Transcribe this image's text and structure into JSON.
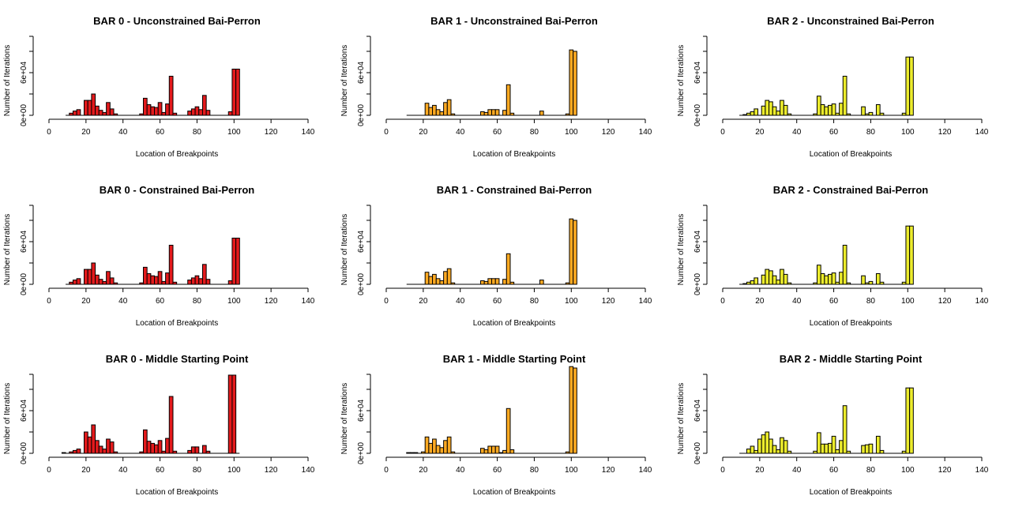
{
  "layout_grid": "3x3",
  "chart_data": [
    {
      "type": "bar",
      "title": "BAR 0 - Unconstrained Bai-Perron",
      "xlabel": "Location of Breakpoints",
      "ylabel": "Number of Iterations",
      "xlim": [
        0,
        140
      ],
      "x_ticks": [
        0,
        20,
        40,
        60,
        80,
        100,
        120,
        140
      ],
      "y_ticks": [
        {
          "value": 0,
          "label": "0e+00"
        },
        {
          "value": 60000,
          "label": "6e+04"
        }
      ],
      "ylim": [
        0,
        120000
      ],
      "bin_width": 2,
      "color": "#e41a1c",
      "x": [
        10,
        12,
        14,
        16,
        18,
        20,
        22,
        24,
        26,
        28,
        30,
        32,
        34,
        36,
        38,
        40,
        42,
        44,
        46,
        48,
        50,
        52,
        54,
        56,
        58,
        60,
        62,
        64,
        66,
        68,
        70,
        72,
        74,
        76,
        78,
        80,
        82,
        84,
        86,
        88,
        90,
        92,
        94,
        96,
        98,
        100,
        102
      ],
      "values": [
        0,
        3000,
        6000,
        8000,
        0,
        21000,
        21000,
        30000,
        13000,
        7000,
        4000,
        18000,
        9000,
        2000,
        0,
        0,
        0,
        0,
        0,
        0,
        2000,
        24000,
        15000,
        12000,
        11000,
        18000,
        4000,
        16000,
        55000,
        3000,
        0,
        0,
        0,
        6000,
        9000,
        12000,
        8000,
        28000,
        7000,
        0,
        0,
        0,
        0,
        0,
        5000,
        65000,
        65000
      ]
    },
    {
      "type": "bar",
      "title": "BAR 1 - Unconstrained Bai-Perron",
      "xlabel": "Location of Breakpoints",
      "ylabel": "Number of Iterations",
      "xlim": [
        0,
        140
      ],
      "x_ticks": [
        0,
        20,
        40,
        60,
        80,
        100,
        120,
        140
      ],
      "y_ticks": [
        {
          "value": 0,
          "label": "0e+00"
        },
        {
          "value": 60000,
          "label": "6e+04"
        }
      ],
      "ylim": [
        0,
        120000
      ],
      "bin_width": 2,
      "color": "#ffaa22",
      "x": [
        12,
        14,
        16,
        18,
        20,
        22,
        24,
        26,
        28,
        30,
        32,
        34,
        36,
        38,
        40,
        42,
        44,
        46,
        48,
        50,
        52,
        54,
        56,
        58,
        60,
        62,
        64,
        66,
        68,
        70,
        72,
        74,
        76,
        78,
        80,
        82,
        84,
        86,
        88,
        90,
        92,
        94,
        96,
        98,
        100,
        102
      ],
      "values": [
        0,
        0,
        0,
        0,
        0,
        17000,
        11000,
        14000,
        8000,
        5000,
        18000,
        22000,
        2000,
        0,
        0,
        0,
        0,
        0,
        0,
        0,
        5000,
        4000,
        8000,
        8000,
        8000,
        0,
        7000,
        43000,
        3000,
        0,
        0,
        0,
        0,
        0,
        0,
        0,
        6000,
        0,
        0,
        0,
        0,
        0,
        0,
        2000,
        92000,
        90000
      ]
    },
    {
      "type": "bar",
      "title": "BAR 2 - Unconstrained Bai-Perron",
      "xlabel": "Location of Breakpoints",
      "ylabel": "Number of Iterations",
      "xlim": [
        0,
        140
      ],
      "x_ticks": [
        0,
        20,
        40,
        60,
        80,
        100,
        120,
        140
      ],
      "y_ticks": [
        {
          "value": 0,
          "label": "0e+00"
        },
        {
          "value": 60000,
          "label": "6e+04"
        }
      ],
      "ylim": [
        0,
        120000
      ],
      "bin_width": 2,
      "color": "#ecec2c",
      "x": [
        10,
        12,
        14,
        16,
        18,
        20,
        22,
        24,
        26,
        28,
        30,
        32,
        34,
        36,
        38,
        40,
        42,
        44,
        46,
        48,
        50,
        52,
        54,
        56,
        58,
        60,
        62,
        64,
        66,
        68,
        70,
        72,
        74,
        76,
        78,
        80,
        82,
        84,
        86,
        88,
        90,
        92,
        94,
        96,
        98,
        100,
        102
      ],
      "values": [
        0,
        1000,
        3000,
        5000,
        9000,
        0,
        13000,
        21000,
        19000,
        12000,
        6000,
        21000,
        14000,
        2000,
        0,
        0,
        0,
        0,
        0,
        0,
        2000,
        27000,
        15000,
        12000,
        14000,
        16000,
        3000,
        17000,
        55000,
        2000,
        0,
        0,
        0,
        12000,
        2000,
        4000,
        0,
        15000,
        3000,
        0,
        0,
        0,
        0,
        0,
        3000,
        82000,
        82000
      ]
    },
    {
      "type": "bar",
      "title": "BAR 0 - Constrained Bai-Perron",
      "xlabel": "Location of Breakpoints",
      "ylabel": "Number of Iterations",
      "xlim": [
        0,
        140
      ],
      "x_ticks": [
        0,
        20,
        40,
        60,
        80,
        100,
        120,
        140
      ],
      "y_ticks": [
        {
          "value": 0,
          "label": "0e+00"
        },
        {
          "value": 60000,
          "label": "6e+04"
        }
      ],
      "ylim": [
        0,
        120000
      ],
      "bin_width": 2,
      "color": "#e41a1c",
      "x": [
        10,
        12,
        14,
        16,
        18,
        20,
        22,
        24,
        26,
        28,
        30,
        32,
        34,
        36,
        38,
        40,
        42,
        44,
        46,
        48,
        50,
        52,
        54,
        56,
        58,
        60,
        62,
        64,
        66,
        68,
        70,
        72,
        74,
        76,
        78,
        80,
        82,
        84,
        86,
        88,
        90,
        92,
        94,
        96,
        98,
        100,
        102
      ],
      "values": [
        0,
        3000,
        6000,
        8000,
        0,
        21000,
        21000,
        30000,
        13000,
        7000,
        4000,
        18000,
        9000,
        2000,
        0,
        0,
        0,
        0,
        0,
        0,
        2000,
        24000,
        15000,
        12000,
        11000,
        18000,
        4000,
        16000,
        55000,
        3000,
        0,
        0,
        0,
        6000,
        9000,
        12000,
        8000,
        28000,
        7000,
        0,
        0,
        0,
        0,
        0,
        5000,
        65000,
        65000
      ]
    },
    {
      "type": "bar",
      "title": "BAR 1 - Constrained Bai-Perron",
      "xlabel": "Location of Breakpoints",
      "ylabel": "Number of Iterations",
      "xlim": [
        0,
        140
      ],
      "x_ticks": [
        0,
        20,
        40,
        60,
        80,
        100,
        120,
        140
      ],
      "y_ticks": [
        {
          "value": 0,
          "label": "0e+00"
        },
        {
          "value": 60000,
          "label": "6e+04"
        }
      ],
      "ylim": [
        0,
        120000
      ],
      "bin_width": 2,
      "color": "#ffaa22",
      "x": [
        12,
        14,
        16,
        18,
        20,
        22,
        24,
        26,
        28,
        30,
        32,
        34,
        36,
        38,
        40,
        42,
        44,
        46,
        48,
        50,
        52,
        54,
        56,
        58,
        60,
        62,
        64,
        66,
        68,
        70,
        72,
        74,
        76,
        78,
        80,
        82,
        84,
        86,
        88,
        90,
        92,
        94,
        96,
        98,
        100,
        102
      ],
      "values": [
        0,
        0,
        0,
        0,
        0,
        17000,
        11000,
        14000,
        8000,
        5000,
        18000,
        22000,
        2000,
        0,
        0,
        0,
        0,
        0,
        0,
        0,
        5000,
        4000,
        8000,
        8000,
        8000,
        0,
        7000,
        43000,
        3000,
        0,
        0,
        0,
        0,
        0,
        0,
        0,
        6000,
        0,
        0,
        0,
        0,
        0,
        0,
        2000,
        92000,
        90000
      ]
    },
    {
      "type": "bar",
      "title": "BAR 2 - Constrained Bai-Perron",
      "xlabel": "Location of Breakpoints",
      "ylabel": "Number of Iterations",
      "xlim": [
        0,
        140
      ],
      "x_ticks": [
        0,
        20,
        40,
        60,
        80,
        100,
        120,
        140
      ],
      "y_ticks": [
        {
          "value": 0,
          "label": "0e+00"
        },
        {
          "value": 60000,
          "label": "6e+04"
        }
      ],
      "ylim": [
        0,
        120000
      ],
      "bin_width": 2,
      "color": "#ecec2c",
      "x": [
        10,
        12,
        14,
        16,
        18,
        20,
        22,
        24,
        26,
        28,
        30,
        32,
        34,
        36,
        38,
        40,
        42,
        44,
        46,
        48,
        50,
        52,
        54,
        56,
        58,
        60,
        62,
        64,
        66,
        68,
        70,
        72,
        74,
        76,
        78,
        80,
        82,
        84,
        86,
        88,
        90,
        92,
        94,
        96,
        98,
        100,
        102
      ],
      "values": [
        0,
        1000,
        3000,
        5000,
        9000,
        0,
        13000,
        21000,
        19000,
        12000,
        6000,
        21000,
        14000,
        2000,
        0,
        0,
        0,
        0,
        0,
        0,
        2000,
        27000,
        15000,
        12000,
        14000,
        16000,
        3000,
        17000,
        55000,
        2000,
        0,
        0,
        0,
        12000,
        2000,
        4000,
        0,
        15000,
        3000,
        0,
        0,
        0,
        0,
        0,
        3000,
        82000,
        82000
      ]
    },
    {
      "type": "bar",
      "title": "BAR 0 - Middle Starting Point",
      "xlabel": "Location of Breakpoints",
      "ylabel": "Number of Iterations",
      "xlim": [
        0,
        140
      ],
      "x_ticks": [
        0,
        20,
        40,
        60,
        80,
        100,
        120,
        140
      ],
      "y_ticks": [
        {
          "value": 0,
          "label": "0e+00"
        },
        {
          "value": 60000,
          "label": "6e+04"
        }
      ],
      "ylim": [
        0,
        120000
      ],
      "bin_width": 2,
      "color": "#e41a1c",
      "x": [
        8,
        10,
        12,
        14,
        16,
        18,
        20,
        22,
        24,
        26,
        28,
        30,
        32,
        34,
        36,
        38,
        40,
        42,
        44,
        46,
        48,
        50,
        52,
        54,
        56,
        58,
        60,
        62,
        64,
        66,
        68,
        70,
        72,
        74,
        76,
        78,
        80,
        82,
        84,
        86,
        88,
        90,
        92,
        94,
        96,
        98,
        100,
        102
      ],
      "values": [
        1000,
        0,
        2000,
        4000,
        6000,
        0,
        30000,
        23000,
        40000,
        18000,
        10000,
        6000,
        20000,
        16000,
        2000,
        0,
        0,
        0,
        0,
        0,
        0,
        2000,
        33000,
        17000,
        14000,
        12000,
        18000,
        3000,
        21000,
        80000,
        3000,
        0,
        0,
        0,
        4000,
        9000,
        9000,
        0,
        11000,
        3000,
        0,
        0,
        0,
        0,
        0,
        110000,
        110000,
        0
      ]
    },
    {
      "type": "bar",
      "title": "BAR 1 - Middle Starting Point",
      "xlabel": "Location of Breakpoints",
      "ylabel": "Number of Iterations",
      "xlim": [
        0,
        140
      ],
      "x_ticks": [
        0,
        20,
        40,
        60,
        80,
        100,
        120,
        140
      ],
      "y_ticks": [
        {
          "value": 0,
          "label": "0e+00"
        },
        {
          "value": 60000,
          "label": "6e+04"
        }
      ],
      "ylim": [
        0,
        120000
      ],
      "bin_width": 2,
      "color": "#ffaa22",
      "x": [
        12,
        14,
        16,
        18,
        20,
        22,
        24,
        26,
        28,
        30,
        32,
        34,
        36,
        38,
        40,
        42,
        44,
        46,
        48,
        50,
        52,
        54,
        56,
        58,
        60,
        62,
        64,
        66,
        68,
        70,
        72,
        74,
        76,
        78,
        80,
        82,
        84,
        86,
        88,
        90,
        92,
        94,
        96,
        98,
        100,
        102
      ],
      "values": [
        1000,
        1000,
        1000,
        0,
        2000,
        23000,
        14000,
        20000,
        11000,
        8000,
        18000,
        23000,
        2000,
        0,
        0,
        0,
        0,
        0,
        0,
        0,
        7000,
        5000,
        10000,
        10000,
        10000,
        1000,
        4000,
        63000,
        5000,
        0,
        0,
        0,
        0,
        0,
        0,
        0,
        0,
        0,
        0,
        0,
        0,
        0,
        0,
        2000,
        122000,
        120000
      ]
    },
    {
      "type": "bar",
      "title": "BAR 2 - Middle Starting Point",
      "xlabel": "Location of Breakpoints",
      "ylabel": "Number of Iterations",
      "xlim": [
        0,
        140
      ],
      "x_ticks": [
        0,
        20,
        40,
        60,
        80,
        100,
        120,
        140
      ],
      "y_ticks": [
        {
          "value": 0,
          "label": "0e+00"
        },
        {
          "value": 60000,
          "label": "6e+04"
        }
      ],
      "ylim": [
        0,
        120000
      ],
      "bin_width": 2,
      "color": "#ecec2c",
      "x": [
        10,
        12,
        14,
        16,
        18,
        20,
        22,
        24,
        26,
        28,
        30,
        32,
        34,
        36,
        38,
        40,
        42,
        44,
        46,
        48,
        50,
        52,
        54,
        56,
        58,
        60,
        62,
        64,
        66,
        68,
        70,
        72,
        74,
        76,
        78,
        80,
        82,
        84,
        86,
        88,
        90,
        92,
        94,
        96,
        98,
        100,
        102
      ],
      "values": [
        0,
        0,
        6000,
        10000,
        4000,
        20000,
        26000,
        30000,
        20000,
        11000,
        5000,
        22000,
        18000,
        3000,
        0,
        0,
        0,
        0,
        0,
        0,
        3000,
        29000,
        13000,
        13000,
        14000,
        24000,
        5000,
        18000,
        67000,
        3000,
        0,
        0,
        0,
        11000,
        12000,
        13000,
        0,
        24000,
        4000,
        0,
        0,
        0,
        0,
        0,
        3000,
        92000,
        92000
      ]
    }
  ]
}
